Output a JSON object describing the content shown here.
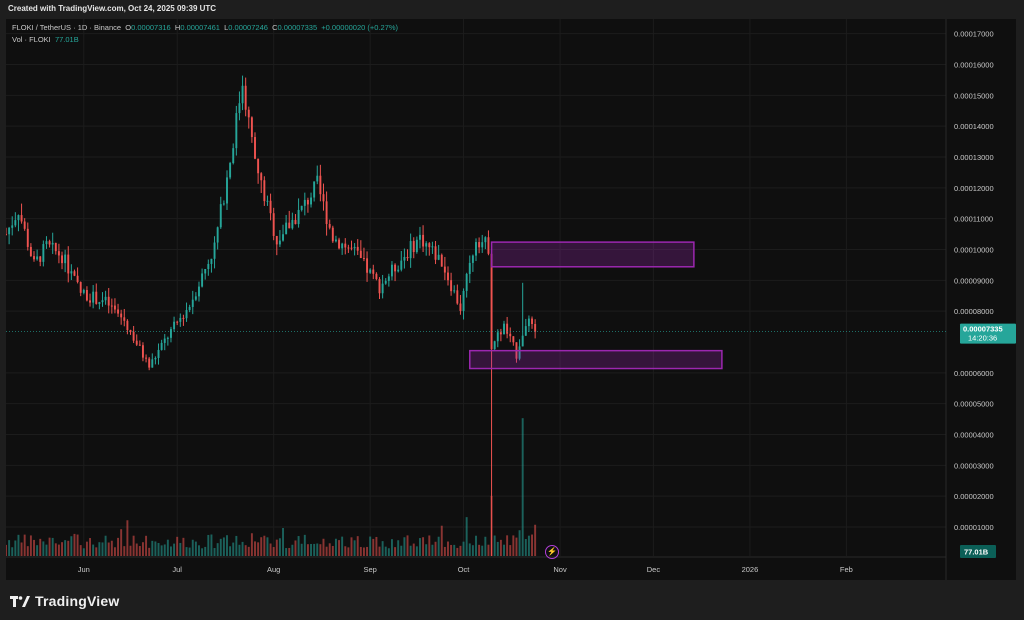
{
  "header": {
    "created_text": "Created with TradingView.com, Oct 24, 2025 09:39 UTC"
  },
  "legend": {
    "symbol": "FLOKI / TetherUS · 1D · Binance",
    "o_label": "O",
    "o_val": "0.00007316",
    "h_label": "H",
    "h_val": "0.00007461",
    "l_label": "L",
    "l_val": "0.00007246",
    "c_label": "C",
    "c_val": "0.00007335",
    "change": "+0.00000020 (+0.27%)",
    "vol_label": "Vol · FLOKI",
    "vol_val": "77.01B"
  },
  "footer": {
    "brand": "TradingView"
  },
  "colors": {
    "up": "#26a69a",
    "down": "#ef5350",
    "zone": "#9c27b0",
    "background": "#0f0f0f"
  },
  "icons": {
    "brand_logo": "tradingview-logo-icon",
    "flash": "lightning-icon"
  },
  "chart_data": {
    "type": "candlestick",
    "title": "FLOKI / TetherUS · 1D · Binance",
    "y_axis": {
      "ticks": [
        "0.00017000",
        "0.00016000",
        "0.00015000",
        "0.00014000",
        "0.00013000",
        "0.00012000",
        "0.00011000",
        "0.00010000",
        "0.00009000",
        "0.00008000",
        "0.00006000",
        "0.00005000",
        "0.00004000",
        "0.00003000",
        "0.00002000",
        "0.00001000"
      ],
      "tick_values": [
        0.00017,
        0.00016,
        0.00015,
        0.00014,
        0.00013,
        0.00012,
        0.00011,
        0.0001,
        9e-05,
        8e-05,
        6e-05,
        5e-05,
        4e-05,
        3e-05,
        2e-05,
        1e-05
      ],
      "ylim": [
        6e-07,
        0.00017476
      ]
    },
    "x_axis": {
      "labels": [
        "Jun",
        "Jul",
        "Aug",
        "Sep",
        "Oct",
        "Nov",
        "Dec",
        "2026",
        "Feb"
      ],
      "label_dates": [
        "2025-06-01",
        "2025-07-01",
        "2025-08-01",
        "2025-09-01",
        "2025-10-01",
        "2025-11-01",
        "2025-12-01",
        "2026-01-01",
        "2026-02-01"
      ],
      "xlim": [
        "2025-05-07",
        "2026-03-05"
      ]
    },
    "last_price": {
      "value": "0.00007335",
      "countdown": "14:20:36",
      "price": 7.335e-05
    },
    "volume": {
      "last": "77.01B"
    },
    "zones": [
      {
        "name": "supply-zone",
        "from": "2025-10-10",
        "to": "2025-12-14",
        "low": 9.44e-05,
        "high": 0.0001024
      },
      {
        "name": "demand-zone",
        "from": "2025-10-03",
        "to": "2025-12-23",
        "low": 6.14e-05,
        "high": 6.72e-05
      }
    ],
    "price_path": [
      [
        "2025-05-07",
        0.000105
      ],
      [
        "2025-05-11",
        0.000113
      ],
      [
        "2025-05-16",
        9.5e-05
      ],
      [
        "2025-05-20",
        0.000101
      ],
      [
        "2025-05-25",
        9.8e-05
      ],
      [
        "2025-05-31",
        8.6e-05
      ],
      [
        "2025-06-08",
        8.3e-05
      ],
      [
        "2025-06-14",
        7.7e-05
      ],
      [
        "2025-06-22",
        6.2e-05
      ],
      [
        "2025-06-28",
        7.2e-05
      ],
      [
        "2025-07-05",
        8.2e-05
      ],
      [
        "2025-07-13",
        0.000101
      ],
      [
        "2025-07-18",
        0.000129
      ],
      [
        "2025-07-22",
        0.000155
      ],
      [
        "2025-07-26",
        0.000128
      ],
      [
        "2025-08-02",
        0.000103
      ],
      [
        "2025-08-10",
        0.000113
      ],
      [
        "2025-08-15",
        0.000121
      ],
      [
        "2025-08-20",
        0.000104
      ],
      [
        "2025-08-27",
        9.9e-05
      ],
      [
        "2025-09-04",
        8.8e-05
      ],
      [
        "2025-09-12",
        9.8e-05
      ],
      [
        "2025-09-17",
        0.000104
      ],
      [
        "2025-09-24",
        9.6e-05
      ],
      [
        "2025-09-30",
        8.1e-05
      ],
      [
        "2025-10-05",
        0.000104
      ],
      [
        "2025-10-09",
        0.000101
      ],
      [
        "2025-10-10",
        6.9e-05
      ],
      [
        "2025-10-14",
        7.5e-05
      ],
      [
        "2025-10-18",
        6.6e-05
      ],
      [
        "2025-10-21",
        7.7e-05
      ],
      [
        "2025-10-24",
        7.335e-05
      ]
    ],
    "events": [
      {
        "date": "2025-10-10",
        "low": 6e-07,
        "volume_spike": 1.95e-05
      },
      {
        "date": "2025-10-20",
        "high": 8.92e-05,
        "volume_spike": 4.47e-05
      }
    ]
  }
}
